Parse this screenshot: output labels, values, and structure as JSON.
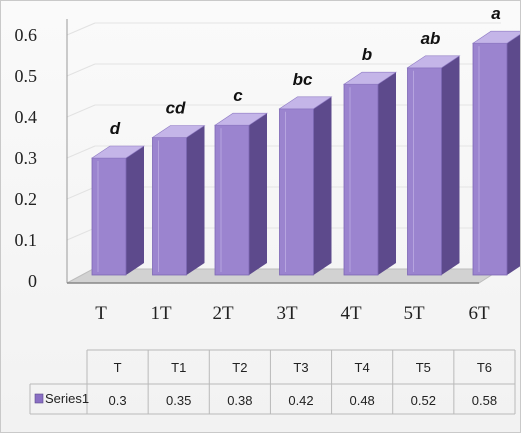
{
  "chart_data": {
    "type": "bar",
    "style": "3d-column",
    "categories": [
      "T",
      "1T",
      "2T",
      "3T",
      "4T",
      "5T",
      "6T"
    ],
    "series": [
      {
        "name": "Series1",
        "values": [
          0.3,
          0.35,
          0.38,
          0.42,
          0.48,
          0.52,
          0.58
        ]
      }
    ],
    "significance_letters": [
      "d",
      "cd",
      "c",
      "bc",
      "b",
      "ab",
      "a"
    ],
    "y_ticks": [
      "0",
      "0.1",
      "0.2",
      "0.3",
      "0.4",
      "0.5",
      "0.6"
    ],
    "ylim": [
      0,
      0.6
    ],
    "grid": true,
    "data_table": {
      "headers": [
        "T",
        "T1",
        "T2",
        "T3",
        "T4",
        "T5",
        "T6"
      ],
      "rows": [
        {
          "label": "Series1",
          "values": [
            "0.3",
            "0.35",
            "0.38",
            "0.42",
            "0.48",
            "0.52",
            "0.58"
          ]
        }
      ]
    },
    "colors": {
      "bar_front": "#9b84cf",
      "bar_side": "#5d4a8c",
      "bar_top": "#c4b5e8",
      "legend_key": "#8a6fc4",
      "floor": "#d2d2d2"
    }
  }
}
